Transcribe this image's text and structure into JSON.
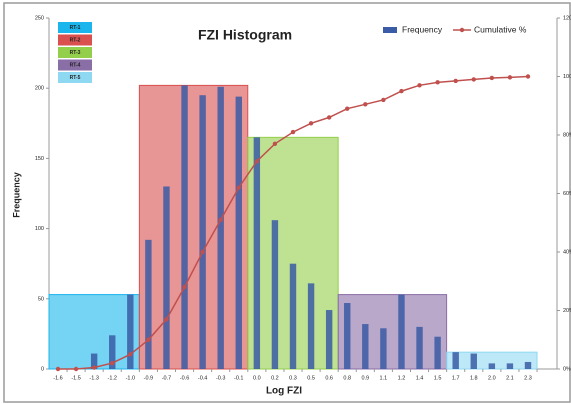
{
  "chart_data": {
    "type": "bar",
    "title": "FZI Histogram",
    "x_label": "Log FZI",
    "y_label": "Frequency",
    "categories": [
      "-1.6",
      "-1.5",
      "-1.3",
      "-1.2",
      "-1.0",
      "-0.9",
      "-0.7",
      "-0.6",
      "-0.4",
      "-0.3",
      "-0.1",
      "0.0",
      "0.2",
      "0.3",
      "0.5",
      "0.6",
      "0.8",
      "0.9",
      "1.1",
      "1.2",
      "1.4",
      "1.5",
      "1.7",
      "1.8",
      "2.0",
      "2.1",
      "2.3"
    ],
    "series": [
      {
        "name": "Frequency",
        "color": "#3a5ba5",
        "type": "bar",
        "values": [
          0,
          0,
          11,
          24,
          53,
          92,
          130,
          202,
          195,
          201,
          194,
          165,
          106,
          75,
          61,
          42,
          47,
          32,
          29,
          53,
          30,
          23,
          12,
          11,
          4,
          4,
          5
        ]
      },
      {
        "name": "Cumulative %",
        "color": "#c0504d",
        "type": "line",
        "axis": "y2",
        "values": [
          0,
          0,
          0.5,
          2,
          5,
          10,
          17,
          28,
          40,
          51,
          62,
          71,
          77,
          81,
          84,
          86,
          89,
          90.5,
          92,
          95,
          97,
          98,
          98.5,
          99,
          99.5,
          99.7,
          100
        ]
      }
    ],
    "regions": [
      {
        "name": "RT-1",
        "color": "#19b5ec",
        "from": "-1.6",
        "to": "-1.0",
        "height": 53
      },
      {
        "name": "RT-2",
        "color": "#d9504f",
        "from": "-0.9",
        "to": "-0.1",
        "height": 202
      },
      {
        "name": "RT-3",
        "color": "#93cf4a",
        "from": "0.0",
        "to": "0.6",
        "height": 165
      },
      {
        "name": "RT-4",
        "color": "#8a6ea6",
        "from": "0.8",
        "to": "1.5",
        "height": 53
      },
      {
        "name": "RT-5",
        "color": "#8fd8f2",
        "from": "1.7",
        "to": "2.3",
        "height": 12
      }
    ],
    "ylim": [
      0,
      250
    ],
    "yticks": [
      0,
      50,
      100,
      150,
      200,
      250
    ],
    "y2lim": [
      0,
      120
    ],
    "y2ticks": [
      {
        "value": 0,
        "label": "0%"
      },
      {
        "value": 20,
        "label": "20%"
      },
      {
        "value": 40,
        "label": "40%"
      },
      {
        "value": 60,
        "label": "60%"
      },
      {
        "value": 80,
        "label": "80%"
      },
      {
        "value": 100,
        "label": "100%"
      },
      {
        "value": 120,
        "label": "120%"
      }
    ],
    "legend": "top-right",
    "grid": false
  }
}
